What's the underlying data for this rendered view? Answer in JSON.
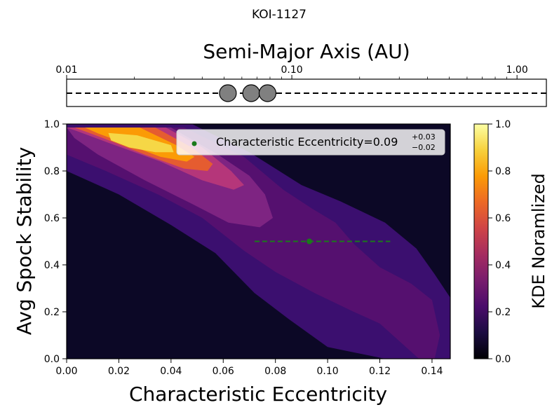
{
  "figure_title": "KOI-1127",
  "chart_data": [
    {
      "type": "scatter",
      "title": "",
      "xlabel": "Semi-Major Axis (AU)",
      "xscale": "log",
      "xlim": [
        0.01,
        1.35
      ],
      "xticks": [
        {
          "value": 0.01,
          "label": "0.01"
        },
        {
          "value": 0.1,
          "label": "0.10"
        },
        {
          "value": 1.0,
          "label": "1.00"
        }
      ],
      "planets": [
        {
          "a": 0.052,
          "y": 0
        },
        {
          "a": 0.066,
          "y": 0
        },
        {
          "a": 0.078,
          "y": 0
        }
      ],
      "reference_line": {
        "y": 0,
        "style": "dashed",
        "color": "#000000"
      }
    },
    {
      "type": "heatmap",
      "title": "",
      "xlabel": "Characteristic Eccentricity",
      "ylabel": "Avg Spock Stability",
      "xlim": [
        0.0,
        0.147
      ],
      "ylim": [
        0.0,
        1.0
      ],
      "xticks": [
        "0.00",
        "0.02",
        "0.04",
        "0.06",
        "0.08",
        "0.10",
        "0.12",
        "0.14"
      ],
      "yticks": [
        "0.0",
        "0.2",
        "0.4",
        "0.6",
        "0.8",
        "1.0"
      ],
      "colorbar": {
        "label": "KDE Noramlized",
        "ticks": [
          "0.0",
          "0.2",
          "0.4",
          "0.6",
          "0.8",
          "1.0"
        ],
        "colormap": "inferno",
        "stops": [
          "#000004",
          "#1b0c41",
          "#4a0c6b",
          "#781c6d",
          "#a52c60",
          "#cf4446",
          "#ed6925",
          "#fb9b06",
          "#f7d13d",
          "#fcffa4"
        ]
      },
      "kde_levels": [
        {
          "level": 0.125,
          "color": "#3b0f6f",
          "polygon": [
            [
              0.0,
              1.0
            ],
            [
              0.048,
              1.0
            ],
            [
              0.07,
              0.88
            ],
            [
              0.09,
              0.74
            ],
            [
              0.105,
              0.67
            ],
            [
              0.122,
              0.58
            ],
            [
              0.134,
              0.47
            ],
            [
              0.141,
              0.36
            ],
            [
              0.147,
              0.26
            ],
            [
              0.147,
              0.0
            ],
            [
              0.122,
              0.0
            ],
            [
              0.1,
              0.05
            ],
            [
              0.085,
              0.17
            ],
            [
              0.072,
              0.28
            ],
            [
              0.057,
              0.45
            ],
            [
              0.04,
              0.57
            ],
            [
              0.02,
              0.7
            ],
            [
              0.0,
              0.8
            ]
          ]
        },
        {
          "level": 0.25,
          "color": "#55106f",
          "polygon": [
            [
              0.0,
              0.985
            ],
            [
              0.045,
              0.985
            ],
            [
              0.068,
              0.86
            ],
            [
              0.083,
              0.72
            ],
            [
              0.094,
              0.64
            ],
            [
              0.103,
              0.58
            ],
            [
              0.11,
              0.49
            ],
            [
              0.12,
              0.39
            ],
            [
              0.132,
              0.32
            ],
            [
              0.14,
              0.25
            ],
            [
              0.143,
              0.1
            ],
            [
              0.141,
              0.0
            ],
            [
              0.135,
              0.0
            ],
            [
              0.12,
              0.15
            ],
            [
              0.11,
              0.2
            ],
            [
              0.095,
              0.28
            ],
            [
              0.08,
              0.37
            ],
            [
              0.068,
              0.46
            ],
            [
              0.052,
              0.6
            ],
            [
              0.035,
              0.7
            ],
            [
              0.015,
              0.8
            ],
            [
              0.0,
              0.87
            ]
          ]
        },
        {
          "level": 0.375,
          "color": "#7e2482",
          "polygon": [
            [
              0.0,
              0.985
            ],
            [
              0.04,
              0.985
            ],
            [
              0.058,
              0.87
            ],
            [
              0.07,
              0.78
            ],
            [
              0.076,
              0.7
            ],
            [
              0.079,
              0.6
            ],
            [
              0.074,
              0.56
            ],
            [
              0.062,
              0.58
            ],
            [
              0.048,
              0.66
            ],
            [
              0.03,
              0.76
            ],
            [
              0.012,
              0.87
            ],
            [
              0.003,
              0.94
            ]
          ]
        },
        {
          "level": 0.5,
          "color": "#b5367a",
          "polygon": [
            [
              0.0,
              0.985
            ],
            [
              0.038,
              0.985
            ],
            [
              0.052,
              0.9
            ],
            [
              0.063,
              0.8
            ],
            [
              0.068,
              0.74
            ],
            [
              0.064,
              0.72
            ],
            [
              0.052,
              0.76
            ],
            [
              0.036,
              0.84
            ],
            [
              0.016,
              0.92
            ],
            [
              0.004,
              0.97
            ]
          ]
        },
        {
          "level": 0.625,
          "color": "#e55c30",
          "polygon": [
            [
              0.003,
              0.985
            ],
            [
              0.034,
              0.985
            ],
            [
              0.048,
              0.9
            ],
            [
              0.056,
              0.83
            ],
            [
              0.054,
              0.8
            ],
            [
              0.045,
              0.81
            ],
            [
              0.03,
              0.87
            ],
            [
              0.014,
              0.94
            ]
          ]
        },
        {
          "level": 0.75,
          "color": "#fb9b06",
          "polygon": [
            [
              0.007,
              0.985
            ],
            [
              0.028,
              0.985
            ],
            [
              0.042,
              0.91
            ],
            [
              0.049,
              0.86
            ],
            [
              0.046,
              0.84
            ],
            [
              0.036,
              0.86
            ],
            [
              0.024,
              0.91
            ],
            [
              0.012,
              0.96
            ]
          ]
        },
        {
          "level": 0.875,
          "color": "#f6d746",
          "polygon": [
            [
              0.016,
              0.962
            ],
            [
              0.027,
              0.952
            ],
            [
              0.04,
              0.91
            ],
            [
              0.041,
              0.88
            ],
            [
              0.034,
              0.88
            ],
            [
              0.024,
              0.9
            ],
            [
              0.017,
              0.93
            ]
          ]
        }
      ],
      "point": {
        "x": 0.093,
        "y": 0.5,
        "xerr_low": 0.021,
        "xerr_high": 0.031,
        "color": "#1a7a1a"
      },
      "legend": {
        "placement": "top-right",
        "label_main": "Characteristic Eccentricity=0.09",
        "sup": "+0.03",
        "sub": "−0.02"
      }
    }
  ]
}
